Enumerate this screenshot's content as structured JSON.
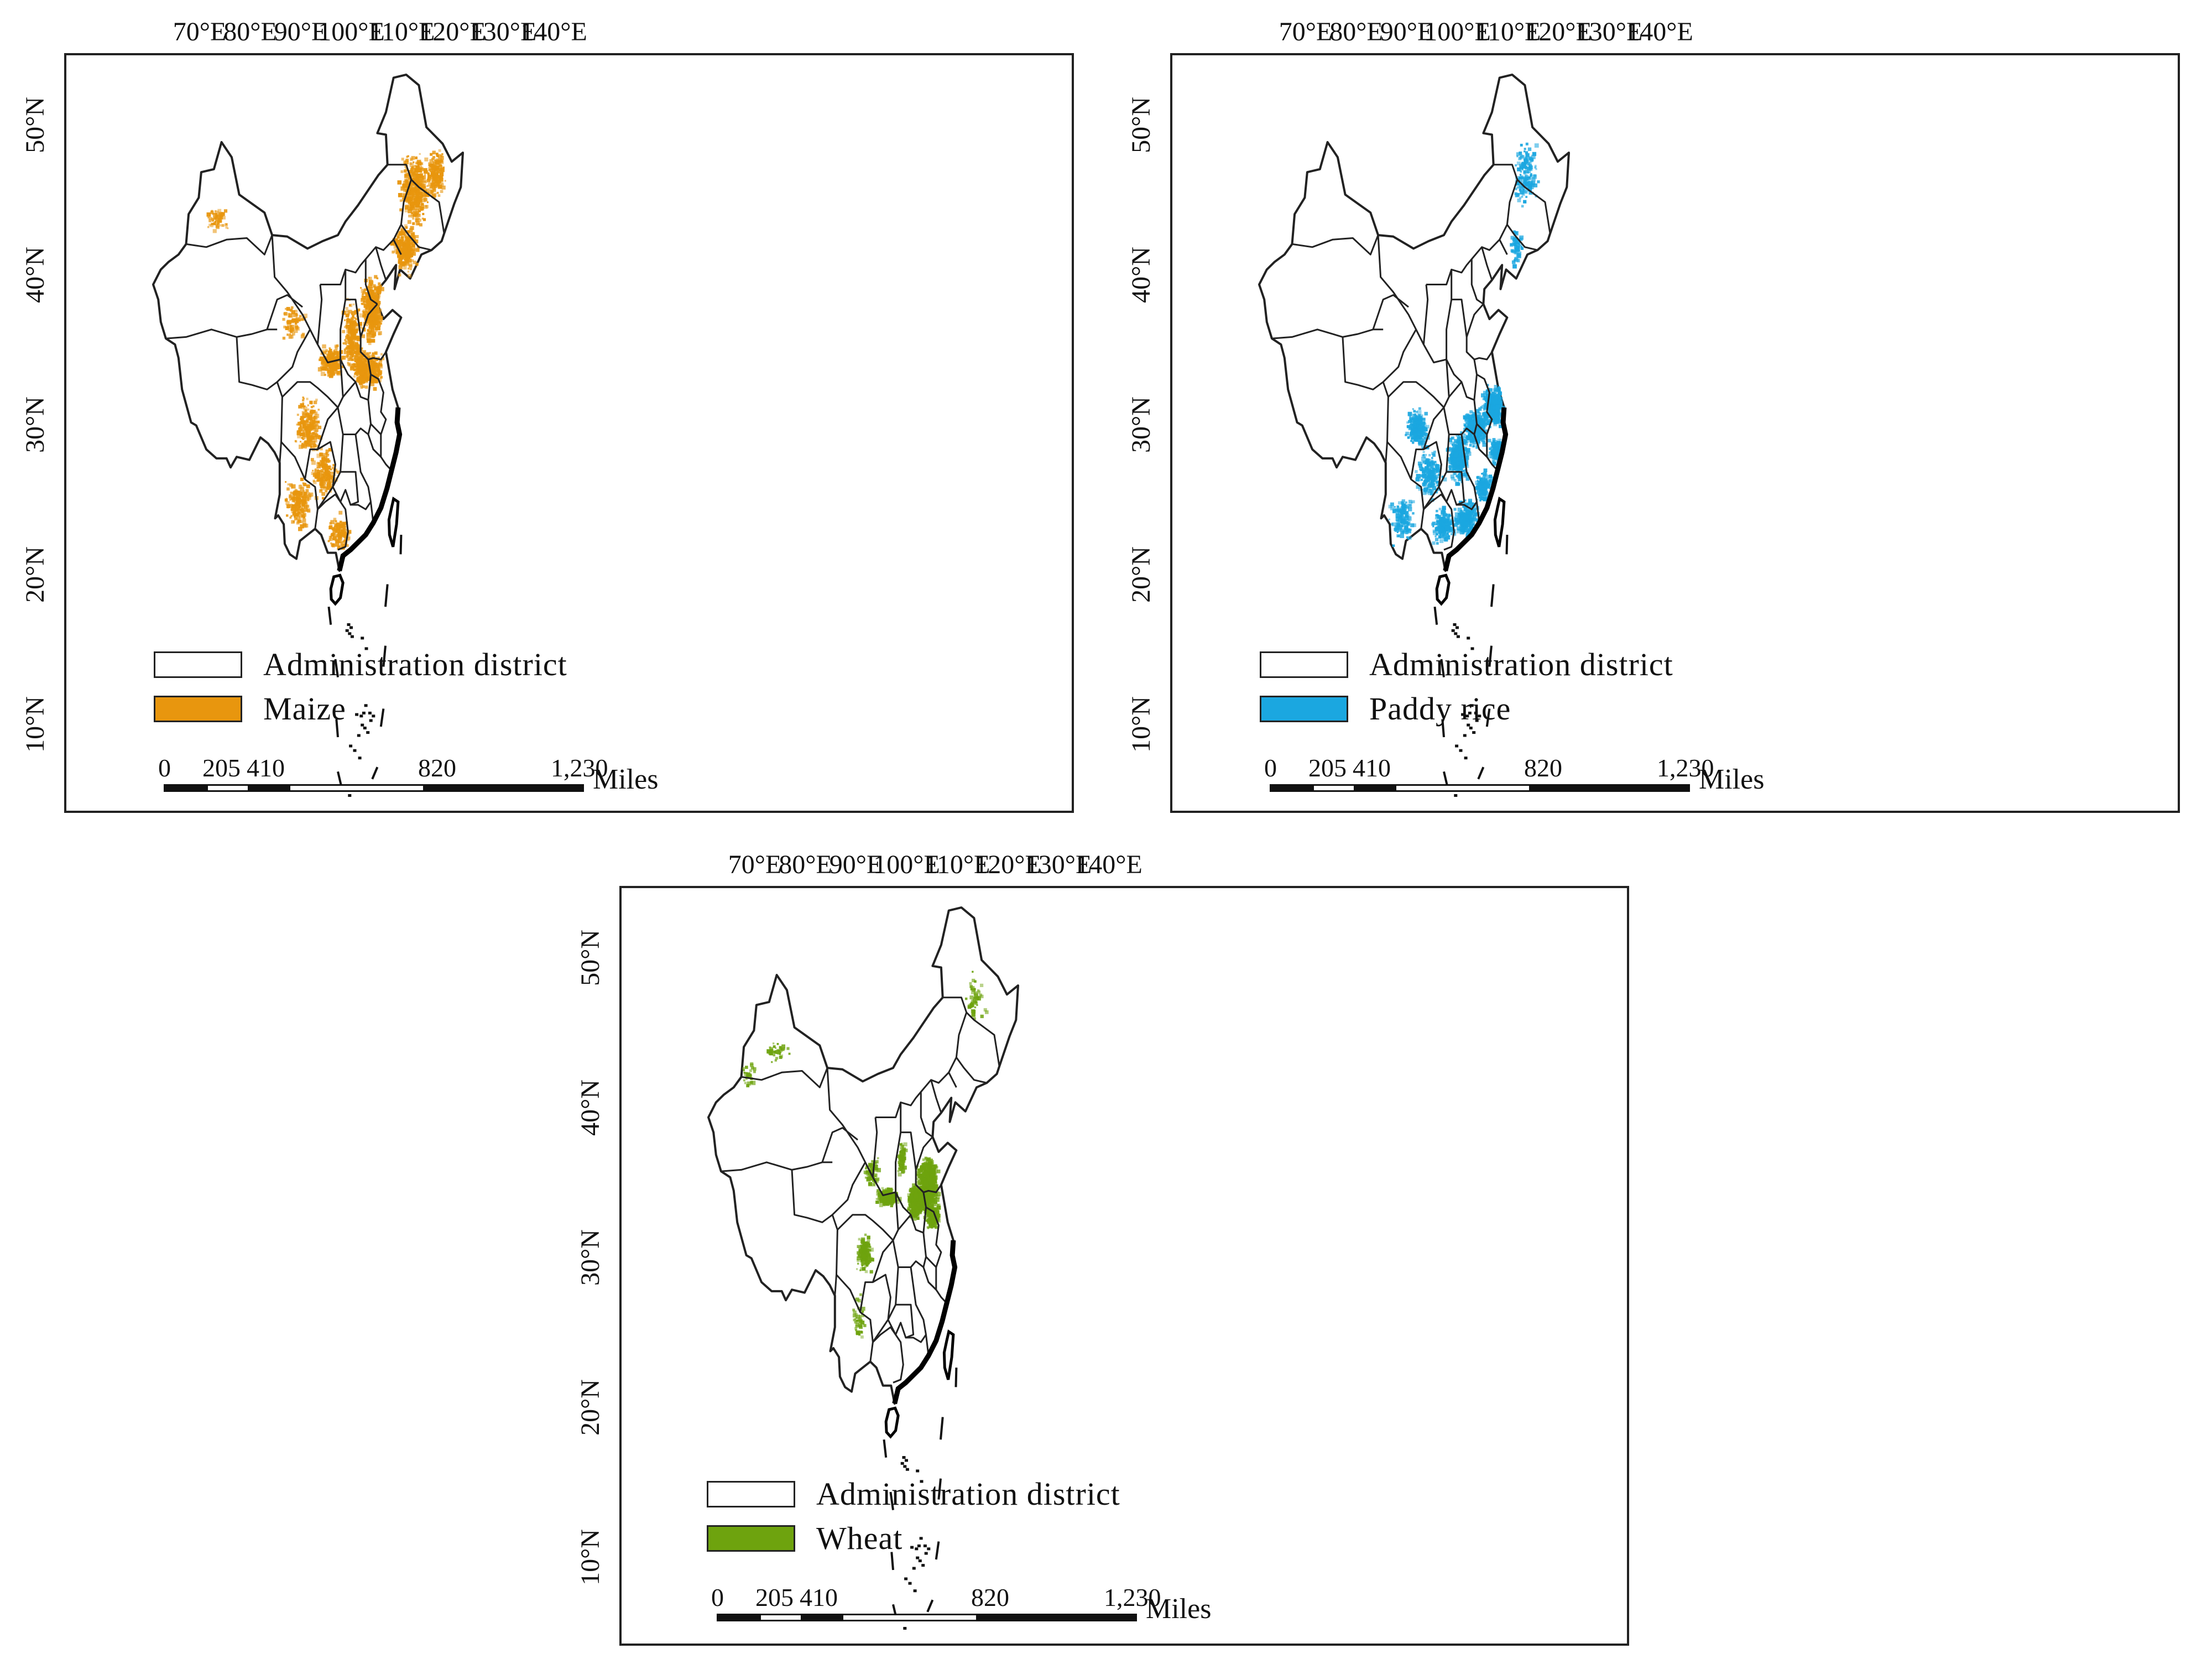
{
  "longitude_labels": [
    "70°E",
    "80°E",
    "90°E",
    "100°E",
    "110°E",
    "120°E",
    "130°E",
    "140°E"
  ],
  "latitude_labels": [
    "50°N",
    "40°N",
    "30°N",
    "20°N",
    "10°N"
  ],
  "panels": [
    {
      "id": "maize",
      "legend": {
        "district_label": "Administration district",
        "crop_label": "Maize",
        "crop_color": "#E8960E"
      }
    },
    {
      "id": "paddy-rice",
      "legend": {
        "district_label": "Administration district",
        "crop_label": "Paddy rice",
        "crop_color": "#1BA7E0"
      }
    },
    {
      "id": "wheat",
      "legend": {
        "district_label": "Administration district",
        "crop_label": "Wheat",
        "crop_color": "#6EA30E"
      }
    }
  ],
  "scale_bar": {
    "ticks": [
      "0",
      "205",
      "410",
      "820",
      "1,230"
    ],
    "units": "Miles"
  },
  "colors": {
    "outline": "#222222",
    "coast": "#000000"
  }
}
